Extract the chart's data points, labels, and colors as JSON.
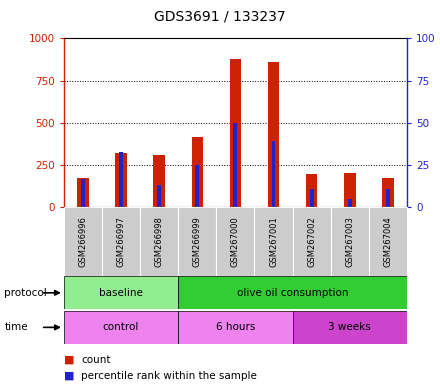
{
  "title": "GDS3691 / 133237",
  "samples": [
    "GSM266996",
    "GSM266997",
    "GSM266998",
    "GSM266999",
    "GSM267000",
    "GSM267001",
    "GSM267002",
    "GSM267003",
    "GSM267004"
  ],
  "count_values": [
    175,
    320,
    310,
    415,
    880,
    860,
    200,
    205,
    175
  ],
  "percentile_values": [
    17,
    33,
    13,
    25,
    50,
    39,
    11,
    5,
    11
  ],
  "ylim_left": [
    0,
    1000
  ],
  "ylim_right": [
    0,
    100
  ],
  "yticks_left": [
    0,
    250,
    500,
    750,
    1000
  ],
  "yticks_right": [
    0,
    25,
    50,
    75,
    100
  ],
  "protocol_labels": [
    {
      "text": "baseline",
      "start": 0,
      "end": 3,
      "color": "#90ee90"
    },
    {
      "text": "olive oil consumption",
      "start": 3,
      "end": 9,
      "color": "#32cd32"
    }
  ],
  "time_labels": [
    {
      "text": "control",
      "start": 0,
      "end": 3,
      "color": "#ee82ee"
    },
    {
      "text": "6 hours",
      "start": 3,
      "end": 6,
      "color": "#ee82ee"
    },
    {
      "text": "3 weeks",
      "start": 6,
      "end": 9,
      "color": "#cc44cc"
    }
  ],
  "bar_color": "#cc2200",
  "percentile_color": "#2222cc",
  "bg_color": "#ffffff",
  "sample_bg_color": "#cccccc",
  "left_axis_color": "#cc2200",
  "right_axis_color": "#2222cc",
  "legend_count_label": "count",
  "legend_percentile_label": "percentile rank within the sample",
  "bar_width": 0.3,
  "pct_bar_width": 0.1
}
